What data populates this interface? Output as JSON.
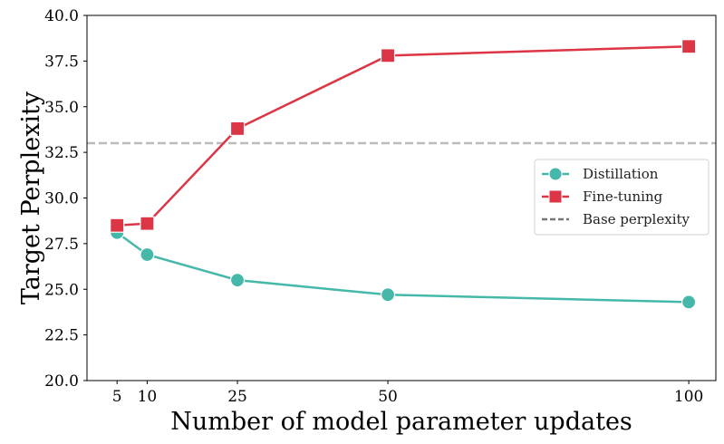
{
  "chart_data": {
    "type": "line",
    "title": "",
    "xlabel": "Number of model parameter updates",
    "ylabel": "Target Perplexity",
    "x": [
      5,
      10,
      25,
      50,
      100
    ],
    "xlim": [
      0,
      104.5
    ],
    "ylim": [
      20.0,
      40.0
    ],
    "yticks": [
      "20.0",
      "22.5",
      "25.0",
      "27.5",
      "30.0",
      "32.5",
      "35.0",
      "37.5",
      "40.0"
    ],
    "xticks": [
      "5",
      "10",
      "25",
      "50",
      "100"
    ],
    "grid": false,
    "legend_position": "center-right",
    "series": [
      {
        "name": "Distillation",
        "values": [
          28.1,
          26.9,
          25.5,
          24.7,
          24.3
        ],
        "color": "#46b8aa",
        "marker": "circle",
        "linestyle": "solid"
      },
      {
        "name": "Fine-tuning",
        "values": [
          28.5,
          28.6,
          33.8,
          37.8,
          38.3
        ],
        "color": "#dc3545",
        "marker": "square",
        "linestyle": "solid"
      }
    ],
    "reference_lines": [
      {
        "name": "Base perplexity",
        "y": 33.0,
        "color": "#bbbbbb",
        "linestyle": "dashed"
      }
    ]
  }
}
